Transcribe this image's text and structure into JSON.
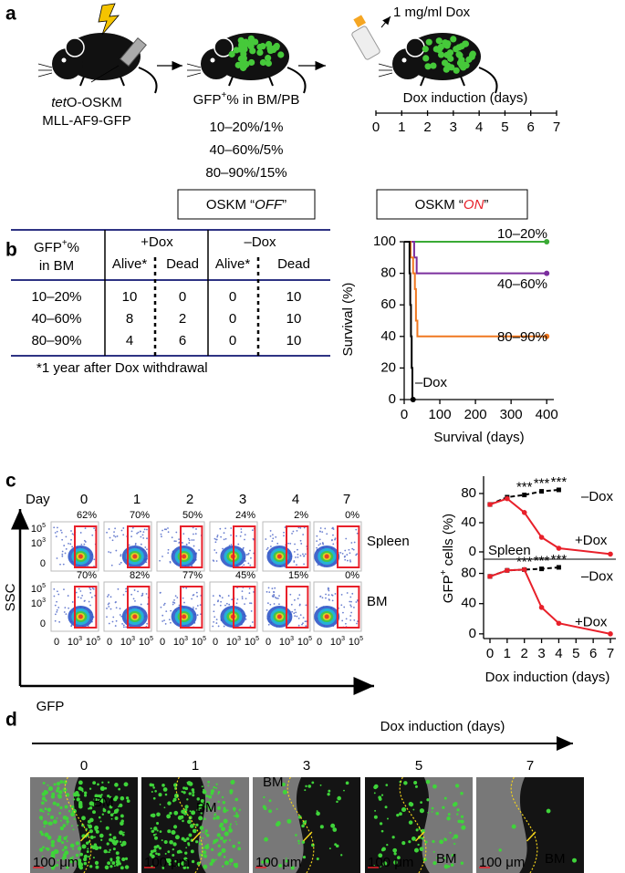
{
  "panel_a": {
    "label": "a",
    "dose": "1 mg/ml Dox",
    "construct": {
      "italic": "tet",
      "rest": "O-OSKM"
    },
    "reporter": "MLL-AF9-GFP",
    "gfp_heading": {
      "base": "GFP",
      "sup": "+",
      "rest": "% in BM/PB"
    },
    "groups": [
      {
        "bm": "10–20%",
        "pb": "1%",
        "color": "#3aaa35"
      },
      {
        "bm": "40–60%",
        "pb": "5%",
        "color": "#7b2f9e"
      },
      {
        "bm": "80–90%",
        "pb": "15%",
        "color": "#f07820"
      }
    ],
    "separator": "/",
    "timeline": {
      "title": "Dox induction (days)",
      "ticks": [
        0,
        1,
        2,
        3,
        4,
        5,
        6,
        7
      ]
    },
    "box_off": {
      "prefix": "OSKM “",
      "state": "OFF",
      "suffix": "”"
    },
    "box_on": {
      "prefix": "OSKM “",
      "state": "ON",
      "suffix": "”",
      "state_color": "#e8202a"
    }
  },
  "panel_b": {
    "label": "b",
    "table": {
      "header": {
        "gfp": {
          "base": "GFP",
          "sup": "+",
          "rest": "%"
        },
        "gfp_line2": "in BM",
        "plus_dox": "+Dox",
        "minus_dox": "–Dox",
        "columns": [
          "Alive*",
          "Dead",
          "Alive*",
          "Dead"
        ]
      },
      "rows": [
        [
          "10–20%",
          10,
          0,
          0,
          10
        ],
        [
          "40–60%",
          8,
          2,
          0,
          10
        ],
        [
          "80–90%",
          4,
          6,
          0,
          10
        ]
      ],
      "highlight_color": "#e8202a"
    },
    "footnote": "*1 year after Dox withdrawal",
    "survival_chart": {
      "type": "line",
      "xlabel": "Survival (days)",
      "ylabel": "Survival (%)",
      "xlim": [
        0,
        420
      ],
      "xticks": [
        0,
        100,
        200,
        300,
        400
      ],
      "ylim": [
        0,
        100
      ],
      "yticks": [
        0,
        20,
        40,
        60,
        80,
        100
      ],
      "series": [
        {
          "name": "10–20%",
          "color": "#3aaa35",
          "x": [
            0,
            400
          ],
          "values": [
            100,
            100
          ]
        },
        {
          "name": "40–60%",
          "color": "#7b2f9e",
          "x": [
            0,
            28,
            28,
            35,
            35,
            400
          ],
          "values": [
            100,
            100,
            90,
            90,
            80,
            80
          ]
        },
        {
          "name": "80–90%",
          "color": "#f07820",
          "x": [
            0,
            18,
            18,
            25,
            25,
            30,
            30,
            33,
            33,
            37,
            37,
            400
          ],
          "values": [
            100,
            100,
            90,
            90,
            80,
            80,
            70,
            70,
            50,
            50,
            40,
            40
          ]
        },
        {
          "name": "–Dox",
          "color": "#000000",
          "x": [
            0,
            15,
            15,
            17,
            17,
            19,
            19,
            21,
            21,
            23,
            23,
            25
          ],
          "values": [
            100,
            100,
            80,
            80,
            60,
            60,
            40,
            40,
            20,
            20,
            0,
            0
          ]
        }
      ]
    }
  },
  "panel_c": {
    "label": "c",
    "day_heading": "Day",
    "days": [
      0,
      1,
      2,
      3,
      4,
      7
    ],
    "rows": [
      {
        "tissue": "Spleen",
        "percents": [
          "62%",
          "70%",
          "50%",
          "24%",
          "2%",
          "0%"
        ]
      },
      {
        "tissue": "BM",
        "percents": [
          "70%",
          "82%",
          "77%",
          "45%",
          "15%",
          "0%"
        ]
      }
    ],
    "flow": {
      "y_ticks": [
        {
          "base": "10",
          "exp": "5"
        },
        {
          "base": "10",
          "exp": "3"
        },
        "0"
      ],
      "x_ticks": [
        "0",
        {
          "base": "10",
          "exp": "3"
        },
        {
          "base": "10",
          "exp": "5"
        }
      ],
      "ylabel": "SSC",
      "xlabel": "GFP"
    },
    "gfp_charts": {
      "type": "line",
      "ylabel": {
        "base": "GFP",
        "sup": "+",
        "rest": " cells (%)"
      },
      "xlabel": "Dox induction (days)",
      "xlim": [
        0,
        7
      ],
      "xticks": [
        0,
        1,
        2,
        3,
        4,
        5,
        6,
        7
      ],
      "charts": [
        {
          "tissue": "Spleen",
          "ylim": [
            -10,
            100
          ],
          "yticks": [
            0,
            40,
            80
          ],
          "series": [
            {
              "name": "–Dox",
              "color": "#000000",
              "dashed": true,
              "x": [
                0,
                1,
                2,
                3,
                4
              ],
              "values": [
                65,
                75,
                78,
                83,
                85
              ]
            },
            {
              "name": "+Dox",
              "color": "#e8202a",
              "x": [
                0,
                1,
                2,
                3,
                4,
                7
              ],
              "values": [
                65,
                73,
                54,
                20,
                5,
                -3
              ]
            }
          ],
          "annotation": "***",
          "annotation_x": [
            2,
            3,
            4
          ]
        },
        {
          "ylim": [
            -5,
            100
          ],
          "yticks": [
            0,
            40,
            80
          ],
          "series": [
            {
              "name": "–Dox",
              "color": "#000000",
              "dashed": true,
              "x": [
                0,
                1,
                2,
                3,
                4
              ],
              "values": [
                76,
                84,
                85,
                86,
                88
              ]
            },
            {
              "name": "+Dox",
              "color": "#e8202a",
              "x": [
                0,
                1,
                2,
                3,
                4,
                7
              ],
              "values": [
                76,
                84,
                85,
                35,
                14,
                0
              ]
            }
          ],
          "annotation": "***",
          "annotation_x": [
            2,
            3,
            4
          ]
        }
      ]
    }
  },
  "panel_d": {
    "label": "d",
    "arrow_title": "Dox induction (days)",
    "days": [
      0,
      1,
      3,
      5,
      7
    ],
    "bm_label": "BM",
    "scale_bar": "100 μm"
  }
}
